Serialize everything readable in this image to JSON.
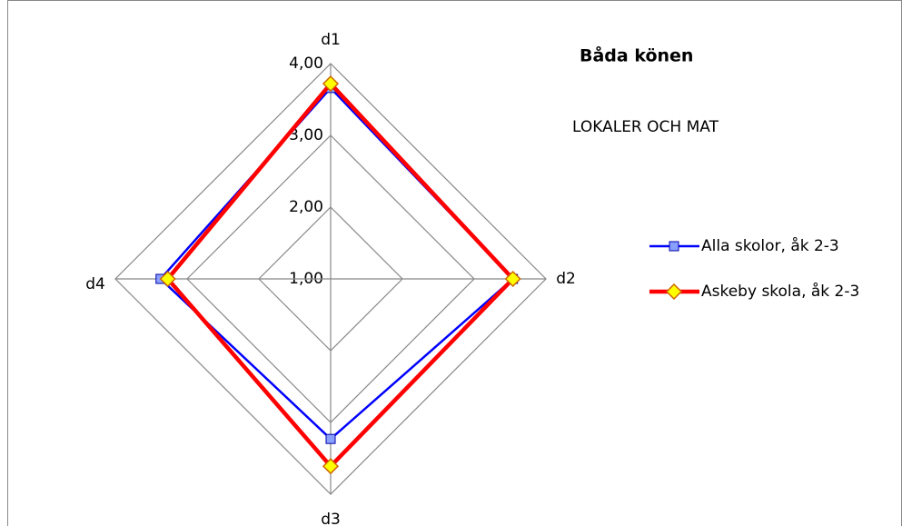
{
  "chart_data": {
    "type": "radar",
    "title": "Båda könen",
    "subtitle": "LOKALER OCH MAT",
    "categories": [
      "d1",
      "d2",
      "d3",
      "d4"
    ],
    "series": [
      {
        "name": "Alla skolor, åk 2-3",
        "color": "#0000ff",
        "marker": "square",
        "values": [
          3.66,
          3.54,
          3.23,
          3.37
        ]
      },
      {
        "name": "Askeby skola, åk 2-3",
        "color": "#ff0000",
        "marker": "diamond",
        "values": [
          3.72,
          3.54,
          3.61,
          3.27
        ]
      }
    ],
    "ylim": [
      1,
      4
    ],
    "yticks": [
      {
        "value": 1,
        "label": "1,00"
      },
      {
        "value": 2,
        "label": "2,00"
      },
      {
        "value": 3,
        "label": "3,00"
      },
      {
        "value": 4,
        "label": "4,00"
      }
    ],
    "grid": true
  }
}
